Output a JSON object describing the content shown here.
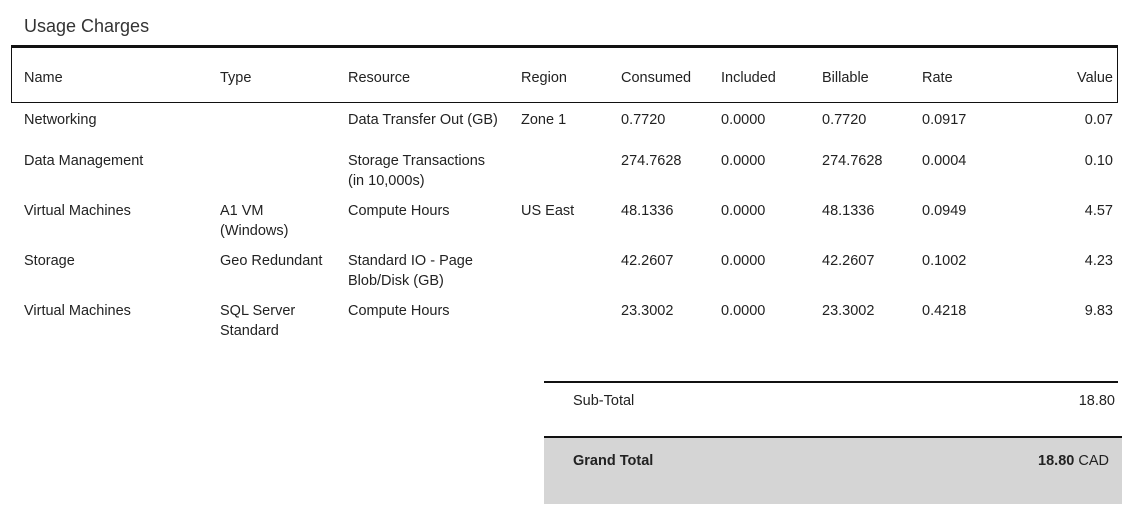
{
  "title": "Usage Charges",
  "table": {
    "columns": [
      "Name",
      "Type",
      "Resource",
      "Region",
      "Consumed",
      "Included",
      "Billable",
      "Rate",
      "Value"
    ],
    "rows": [
      [
        "Networking",
        null,
        "Data Transfer Out (GB)",
        "Zone 1",
        "0.7720",
        "0.0000",
        "0.7720",
        "0.0917",
        "0.07"
      ],
      [
        "Data Management",
        null,
        "Storage Transactions (in 10,000s)",
        null,
        "274.7628",
        "0.0000",
        "274.7628",
        "0.0004",
        "0.10"
      ],
      [
        "Virtual Machines",
        "A1 VM (Windows)",
        "Compute Hours",
        "US East",
        "48.1336",
        "0.0000",
        "48.1336",
        "0.0949",
        "4.57"
      ],
      [
        "Storage",
        "Geo Redundant",
        "Standard IO - Page Blob/Disk (GB)",
        null,
        "42.2607",
        "0.0000",
        "42.2607",
        "0.1002",
        "4.23"
      ],
      [
        "Virtual Machines",
        "SQL Server Standard",
        "Compute Hours",
        null,
        "23.3002",
        "0.0000",
        "23.3002",
        "0.4218",
        "9.83"
      ]
    ]
  },
  "totals": {
    "subtotal": {
      "label": "Sub-Total",
      "value": "18.80"
    },
    "grand_total": {
      "label": "Grand Total",
      "value": "18.80",
      "currency": "CAD"
    }
  }
}
